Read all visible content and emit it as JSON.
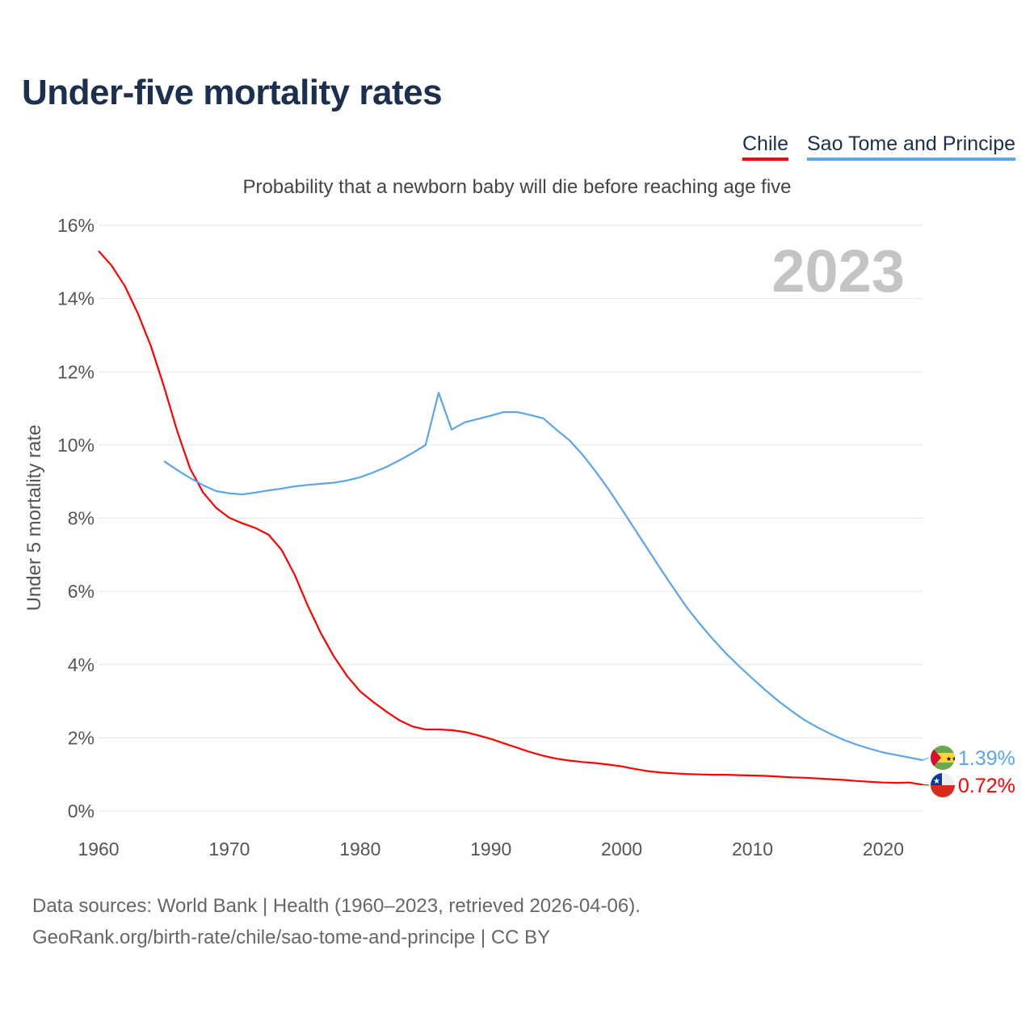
{
  "chart_data": {
    "type": "line",
    "title": "Under-five mortality rates",
    "subtitle": "Probability that a newborn baby will die before reaching age five",
    "ylabel": "Under 5 mortality rate",
    "xlabel": "",
    "year_label": "2023",
    "xlim": [
      1960,
      2023
    ],
    "ylim": [
      0,
      16
    ],
    "x_ticks": [
      1960,
      1970,
      1980,
      1990,
      2000,
      2010,
      2020
    ],
    "y_ticks": [
      0,
      2,
      4,
      6,
      8,
      10,
      12,
      14,
      16
    ],
    "y_tick_labels": [
      "0%",
      "2%",
      "4%",
      "6%",
      "8%",
      "10%",
      "12%",
      "14%",
      "16%"
    ],
    "grid": true,
    "legend_position": "top-right",
    "series": [
      {
        "name": "Chile",
        "color": "#ff0000",
        "end_label": "0.72%",
        "flag": "chile-flag",
        "x": [
          1960,
          1961,
          1962,
          1963,
          1964,
          1965,
          1966,
          1967,
          1968,
          1969,
          1970,
          1971,
          1972,
          1973,
          1974,
          1975,
          1976,
          1977,
          1978,
          1979,
          1980,
          1981,
          1982,
          1983,
          1984,
          1985,
          1986,
          1987,
          1988,
          1989,
          1990,
          1991,
          1992,
          1993,
          1994,
          1995,
          1996,
          1997,
          1998,
          1999,
          2000,
          2001,
          2002,
          2003,
          2004,
          2005,
          2006,
          2007,
          2008,
          2009,
          2010,
          2011,
          2012,
          2013,
          2014,
          2015,
          2016,
          2017,
          2018,
          2019,
          2020,
          2021,
          2022,
          2023
        ],
        "values": [
          15.3,
          14.9,
          14.35,
          13.6,
          12.7,
          11.6,
          10.4,
          9.36,
          8.7,
          8.28,
          8.01,
          7.86,
          7.73,
          7.55,
          7.13,
          6.45,
          5.61,
          4.86,
          4.22,
          3.69,
          3.27,
          2.98,
          2.72,
          2.48,
          2.31,
          2.23,
          2.23,
          2.21,
          2.16,
          2.07,
          1.97,
          1.85,
          1.73,
          1.61,
          1.51,
          1.43,
          1.38,
          1.34,
          1.31,
          1.27,
          1.22,
          1.15,
          1.09,
          1.05,
          1.03,
          1.01,
          1.0,
          0.99,
          0.99,
          0.98,
          0.97,
          0.96,
          0.94,
          0.92,
          0.91,
          0.89,
          0.87,
          0.85,
          0.82,
          0.8,
          0.78,
          0.77,
          0.78,
          0.72
        ]
      },
      {
        "name": "Sao Tome and Principe",
        "color": "#5aa5ec",
        "end_label": "1.39%",
        "flag": "sao-tome-flag",
        "x": [
          1965,
          1966,
          1967,
          1968,
          1969,
          1970,
          1971,
          1972,
          1973,
          1974,
          1975,
          1976,
          1977,
          1978,
          1979,
          1980,
          1981,
          1982,
          1983,
          1984,
          1985,
          1986,
          1987,
          1988,
          1989,
          1990,
          1991,
          1992,
          1993,
          1994,
          1995,
          1996,
          1997,
          1998,
          1999,
          2000,
          2001,
          2002,
          2003,
          2004,
          2005,
          2006,
          2007,
          2008,
          2009,
          2010,
          2011,
          2012,
          2013,
          2014,
          2015,
          2016,
          2017,
          2018,
          2019,
          2020,
          2021,
          2022,
          2023
        ],
        "values": [
          9.56,
          9.32,
          9.1,
          8.9,
          8.74,
          8.68,
          8.65,
          8.7,
          8.76,
          8.81,
          8.87,
          8.91,
          8.94,
          8.97,
          9.03,
          9.12,
          9.25,
          9.4,
          9.58,
          9.78,
          10.0,
          11.43,
          10.42,
          10.62,
          10.71,
          10.8,
          10.9,
          10.9,
          10.82,
          10.73,
          10.42,
          10.13,
          9.74,
          9.28,
          8.79,
          8.25,
          7.7,
          7.15,
          6.6,
          6.07,
          5.55,
          5.1,
          4.68,
          4.3,
          3.95,
          3.62,
          3.3,
          3.0,
          2.73,
          2.48,
          2.28,
          2.1,
          1.94,
          1.81,
          1.7,
          1.6,
          1.53,
          1.46,
          1.39
        ]
      }
    ]
  },
  "footer": {
    "sources": "Data sources: World Bank | Health (1960–2023, retrieved 2026-04-06).",
    "link": "GeoRank.org/birth-rate/chile/sao-tome-and-principe | CC BY"
  }
}
